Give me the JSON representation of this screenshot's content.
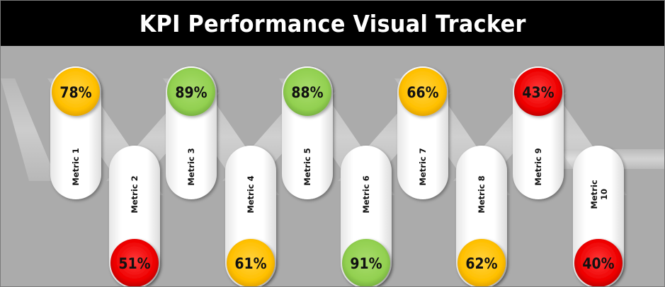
{
  "title": "KPI Performance Visual Tracker",
  "colors": {
    "good": "#92d050",
    "medium": "#ffc000",
    "bad": "#ff0000"
  },
  "chart_data": {
    "type": "infographic",
    "title": "KPI Performance Visual Tracker",
    "metrics": [
      {
        "label": "Metric 1",
        "value": 78,
        "display": "78%",
        "status": "medium"
      },
      {
        "label": "Metric 2",
        "value": 51,
        "display": "51%",
        "status": "bad"
      },
      {
        "label": "Metric 3",
        "value": 89,
        "display": "89%",
        "status": "good"
      },
      {
        "label": "Metric 4",
        "value": 61,
        "display": "61%",
        "status": "medium"
      },
      {
        "label": "Metric 5",
        "value": 88,
        "display": "88%",
        "status": "good"
      },
      {
        "label": "Metric 6",
        "value": 91,
        "display": "91%",
        "status": "good"
      },
      {
        "label": "Metric 7",
        "value": 66,
        "display": "66%",
        "status": "medium"
      },
      {
        "label": "Metric 8",
        "value": 62,
        "display": "62%",
        "status": "medium"
      },
      {
        "label": "Metric 9",
        "value": 43,
        "display": "43%",
        "status": "bad"
      },
      {
        "label": "Metric 10",
        "value": 40,
        "display": "40%",
        "status": "bad"
      }
    ]
  }
}
